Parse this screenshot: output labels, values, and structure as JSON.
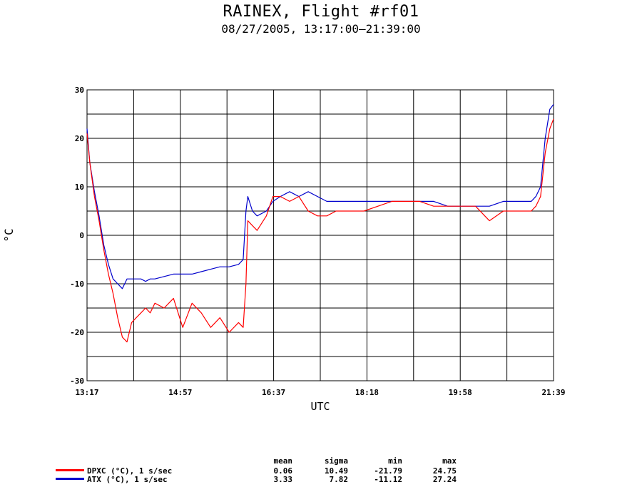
{
  "header": {
    "title": "RAINEX, Flight #rf01",
    "subtitle": "08/27/2005, 13:17:00–21:39:00"
  },
  "chart_data": {
    "type": "line",
    "xlabel": "UTC",
    "ylabel": "°C",
    "ylim": [
      -30,
      30
    ],
    "xlim": [
      "13:17",
      "21:39"
    ],
    "x_ticks": [
      "13:17",
      "14:57",
      "16:37",
      "18:18",
      "19:58",
      "21:39"
    ],
    "y_ticks": [
      "30",
      "20",
      "10",
      "0",
      "-10",
      "-20",
      "-30"
    ],
    "grid": true,
    "x": [
      "13:17",
      "13:20",
      "13:25",
      "13:30",
      "13:35",
      "13:40",
      "13:45",
      "13:50",
      "13:55",
      "14:00",
      "14:05",
      "14:10",
      "14:15",
      "14:20",
      "14:25",
      "14:30",
      "14:40",
      "14:50",
      "15:00",
      "15:10",
      "15:20",
      "15:30",
      "15:40",
      "15:50",
      "16:00",
      "16:05",
      "16:08",
      "16:10",
      "16:15",
      "16:20",
      "16:30",
      "16:37",
      "16:45",
      "16:55",
      "17:05",
      "17:15",
      "17:25",
      "17:35",
      "17:45",
      "18:00",
      "18:15",
      "18:30",
      "18:45",
      "19:00",
      "19:15",
      "19:30",
      "19:45",
      "20:00",
      "20:15",
      "20:30",
      "20:45",
      "21:00",
      "21:15",
      "21:20",
      "21:25",
      "21:30",
      "21:35",
      "21:39"
    ],
    "series": [
      {
        "name": "DPXC (°C), 1 s/sec",
        "color": "#ff0000",
        "values": [
          21,
          15,
          8,
          3,
          -3,
          -8,
          -12,
          -17,
          -21,
          -22,
          -18,
          -17,
          -16,
          -15,
          -16,
          -14,
          -15,
          -13,
          -19,
          -14,
          -16,
          -19,
          -17,
          -20,
          -18,
          -19,
          -10,
          3,
          2,
          1,
          4,
          8,
          8,
          7,
          8,
          5,
          4,
          4,
          5,
          5,
          5,
          6,
          7,
          7,
          7,
          6,
          6,
          6,
          6,
          3,
          5,
          5,
          5,
          6,
          8,
          17,
          22,
          24
        ]
      },
      {
        "name": "ATX (°C), 1 s/sec",
        "color": "#0000cc",
        "values": [
          22,
          15,
          9,
          4,
          -2,
          -6,
          -9,
          -10,
          -11,
          -9,
          -9,
          -9,
          -9,
          -9.5,
          -9,
          -9,
          -8.5,
          -8,
          -8,
          -8,
          -7.5,
          -7,
          -6.5,
          -6.5,
          -6,
          -5,
          5,
          8,
          5,
          4,
          5,
          7,
          8,
          9,
          8,
          9,
          8,
          7,
          7,
          7,
          7,
          7,
          7,
          7,
          7,
          7,
          6,
          6,
          6,
          6,
          7,
          7,
          7,
          8,
          10,
          20,
          26,
          27
        ]
      }
    ],
    "stats": {
      "headers": [
        "mean",
        "sigma",
        "min",
        "max"
      ],
      "rows": [
        [
          "0.06",
          "10.49",
          "-21.79",
          "24.75"
        ],
        [
          "3.33",
          "7.82",
          "-11.12",
          "27.24"
        ]
      ]
    }
  }
}
